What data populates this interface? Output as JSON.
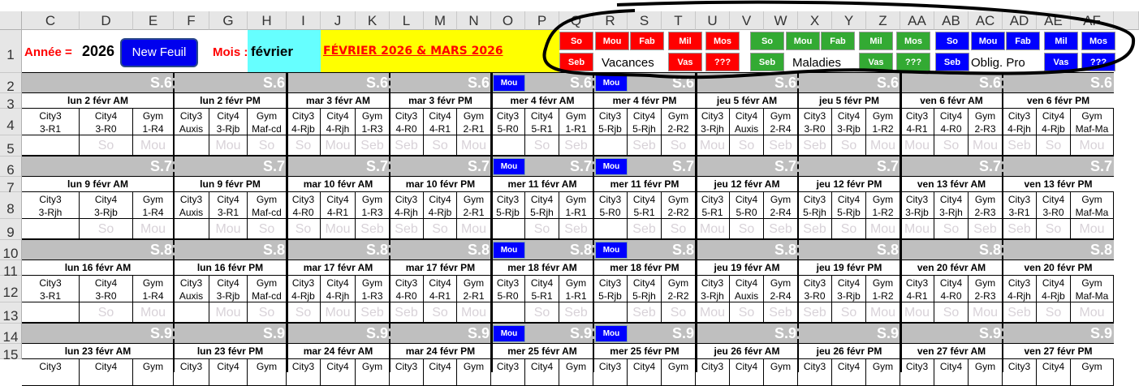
{
  "columns": [
    "C",
    "D",
    "E",
    "F",
    "G",
    "H",
    "I",
    "J",
    "K",
    "L",
    "M",
    "N",
    "O",
    "P",
    "Q",
    "R",
    "S",
    "T",
    "U",
    "V",
    "W",
    "X",
    "Y",
    "Z",
    "AA",
    "AB",
    "AC",
    "AD",
    "AE",
    "AF"
  ],
  "rows": [
    "1",
    "2",
    "3",
    "4",
    "5",
    "6",
    "7",
    "8",
    "9",
    "10",
    "11",
    "12",
    "13",
    "14",
    "15"
  ],
  "header": {
    "annee_label": "Année =",
    "annee_value": "2026",
    "new_sheet_button": "New Feuil",
    "mois_label": "Mois :",
    "mois_value": "février",
    "title": "FÉVRIER 2026 & MARS 2026"
  },
  "colors": {
    "red": "#ff0000",
    "green": "#33aa33",
    "blue": "#0000ff",
    "cyan": "#66ffff",
    "yellow": "#ffff00",
    "week_bar": "#bfbfbf"
  },
  "legend": [
    {
      "label": "Vacances",
      "color": "#ff0000",
      "top": [
        "So",
        "Mou",
        "Fab",
        "Mil",
        "Mos"
      ],
      "bottom": [
        "Seb",
        "Vas",
        "???"
      ]
    },
    {
      "label": "Maladies",
      "color": "#33aa33",
      "top": [
        "So",
        "Mou",
        "Fab",
        "Mil",
        "Mos"
      ],
      "bottom": [
        "Seb",
        "Vas",
        "???"
      ]
    },
    {
      "label": "Oblig. Pro",
      "color": "#0000ff",
      "top": [
        "So",
        "Mou",
        "Fab",
        "Mil",
        "Mos"
      ],
      "bottom": [
        "Seb",
        "Vas",
        "???"
      ]
    }
  ],
  "week_marker": "Mou",
  "weeks": [
    {
      "label": "S.6",
      "blocks": [
        {
          "title": "lun 2 févr AM",
          "slots": [
            [
              "City3",
              "3-R1",
              ""
            ],
            [
              "City4",
              "3-R0",
              "So"
            ],
            [
              "Gym",
              "1-R4",
              "Mou"
            ]
          ]
        },
        {
          "title": "lun 2 févr PM",
          "slots": [
            [
              "City3",
              "Auxis",
              ""
            ],
            [
              "City4",
              "3-Rjb",
              "Mou"
            ],
            [
              "Gym",
              "Maf-cd",
              "So"
            ]
          ]
        },
        {
          "title": "mar 3 févr AM",
          "slots": [
            [
              "City3",
              "4-Rjb",
              "So"
            ],
            [
              "City4",
              "4-Rjh",
              "Mou"
            ],
            [
              "Gym",
              "1-R3",
              "Seb"
            ]
          ]
        },
        {
          "title": "mar 3 févr PM",
          "slots": [
            [
              "City3",
              "4-R0",
              "Seb"
            ],
            [
              "City4",
              "4-R1",
              "So"
            ],
            [
              "Gym",
              "2-R1",
              "Mou"
            ]
          ]
        },
        {
          "title": "mer 4 févr AM",
          "slots": [
            [
              "City3",
              "5-R0",
              ""
            ],
            [
              "City4",
              "5-R1",
              "So"
            ],
            [
              "Gym",
              "1-R1",
              "Seb"
            ]
          ]
        },
        {
          "title": "mer 4 févr PM",
          "slots": [
            [
              "City3",
              "5-Rjb",
              ""
            ],
            [
              "City4",
              "5-Rjh",
              "Seb"
            ],
            [
              "Gym",
              "2-R2",
              "So"
            ]
          ]
        },
        {
          "title": "jeu 5 févr AM",
          "slots": [
            [
              "City3",
              "3-Rjh",
              "Mou"
            ],
            [
              "City4",
              "Auxis",
              "So"
            ],
            [
              "Gym",
              "2-R4",
              "Seb"
            ]
          ]
        },
        {
          "title": "jeu 5 févr PM",
          "slots": [
            [
              "City3",
              "3-R0",
              "Seb"
            ],
            [
              "City4",
              "3-Rjb",
              "So"
            ],
            [
              "Gym",
              "1-R2",
              "Mou"
            ]
          ]
        },
        {
          "title": "ven 6 févr AM",
          "slots": [
            [
              "City3",
              "4-R1",
              "Mou"
            ],
            [
              "City4",
              "4-R0",
              "So"
            ],
            [
              "Gym",
              "2-R3",
              "Mou"
            ]
          ]
        },
        {
          "title": "ven 6 févr PM",
          "slots": [
            [
              "City3",
              "4-Rjh",
              "Seb"
            ],
            [
              "City4",
              "4-Rjb",
              "So"
            ],
            [
              "Gym",
              "Maf-Ma",
              "Mou"
            ]
          ]
        }
      ]
    },
    {
      "label": "S.7",
      "blocks": [
        {
          "title": "lun 9 févr AM",
          "slots": [
            [
              "City3",
              "3-Rjh",
              ""
            ],
            [
              "City4",
              "3-Rjb",
              "So"
            ],
            [
              "Gym",
              "1-R4",
              "Mou"
            ]
          ]
        },
        {
          "title": "lun 9 févr PM",
          "slots": [
            [
              "City3",
              "Auxis",
              ""
            ],
            [
              "City4",
              "3-R1",
              "Mou"
            ],
            [
              "Gym",
              "Maf-cd",
              "So"
            ]
          ]
        },
        {
          "title": "mar 10 févr AM",
          "slots": [
            [
              "City3",
              "4-R0",
              "So"
            ],
            [
              "City4",
              "4-R1",
              "Mou"
            ],
            [
              "Gym",
              "1-R3",
              "Seb"
            ]
          ]
        },
        {
          "title": "mar 10 févr PM",
          "slots": [
            [
              "City3",
              "4-Rjh",
              "Seb"
            ],
            [
              "City4",
              "4-Rjb",
              "So"
            ],
            [
              "Gym",
              "2-R1",
              "Mou"
            ]
          ]
        },
        {
          "title": "mer 11 févr AM",
          "slots": [
            [
              "City3",
              "5-Rjb",
              ""
            ],
            [
              "City4",
              "5-Rjh",
              "So"
            ],
            [
              "Gym",
              "1-R1",
              "Seb"
            ]
          ]
        },
        {
          "title": "mer 11 févr PM",
          "slots": [
            [
              "City3",
              "5-R0",
              ""
            ],
            [
              "City4",
              "5-R1",
              "Seb"
            ],
            [
              "Gym",
              "2-R2",
              "So"
            ]
          ]
        },
        {
          "title": "jeu 12 févr AM",
          "slots": [
            [
              "City3",
              "5-R1",
              "Mou"
            ],
            [
              "City4",
              "5-R0",
              "So"
            ],
            [
              "Gym",
              "2-R4",
              "Seb"
            ]
          ]
        },
        {
          "title": "jeu 12 févr PM",
          "slots": [
            [
              "City3",
              "5-Rjh",
              "Seb"
            ],
            [
              "City4",
              "5-Rjb",
              "So"
            ],
            [
              "Gym",
              "1-R2",
              "Mou"
            ]
          ]
        },
        {
          "title": "ven 13 févr AM",
          "slots": [
            [
              "City3",
              "3-Rjb",
              "Mou"
            ],
            [
              "City4",
              "3-Rjh",
              "So"
            ],
            [
              "Gym",
              "2-R3",
              "Seb"
            ]
          ]
        },
        {
          "title": "ven 13 févr PM",
          "slots": [
            [
              "City3",
              "3-R1",
              "Seb"
            ],
            [
              "City4",
              "3-R0",
              "So"
            ],
            [
              "Gym",
              "Maf-Ma",
              "Mou"
            ]
          ]
        }
      ]
    },
    {
      "label": "S.8",
      "blocks": [
        {
          "title": "lun 16 févr AM",
          "slots": [
            [
              "City3",
              "3-R1",
              ""
            ],
            [
              "City4",
              "3-R0",
              "So"
            ],
            [
              "Gym",
              "1-R4",
              "Mou"
            ]
          ]
        },
        {
          "title": "lun 16 févr PM",
          "slots": [
            [
              "City3",
              "Auxis",
              ""
            ],
            [
              "City4",
              "3-Rjb",
              "Mou"
            ],
            [
              "Gym",
              "Maf-cd",
              "So"
            ]
          ]
        },
        {
          "title": "mar 17 févr AM",
          "slots": [
            [
              "City3",
              "4-Rjb",
              "So"
            ],
            [
              "City4",
              "4-Rjh",
              "Mou"
            ],
            [
              "Gym",
              "1-R3",
              "Seb"
            ]
          ]
        },
        {
          "title": "mar 17 févr PM",
          "slots": [
            [
              "City3",
              "4-R0",
              "Seb"
            ],
            [
              "City4",
              "4-R1",
              "So"
            ],
            [
              "Gym",
              "2-R1",
              "Mou"
            ]
          ]
        },
        {
          "title": "mer 18 févr AM",
          "slots": [
            [
              "City3",
              "5-R0",
              ""
            ],
            [
              "City4",
              "5-R1",
              "So"
            ],
            [
              "Gym",
              "1-R1",
              "Seb"
            ]
          ]
        },
        {
          "title": "mer 18 févr PM",
          "slots": [
            [
              "City3",
              "5-Rjb",
              ""
            ],
            [
              "City4",
              "5-Rjh",
              "Seb"
            ],
            [
              "Gym",
              "2-R2",
              "So"
            ]
          ]
        },
        {
          "title": "jeu 19 févr AM",
          "slots": [
            [
              "City3",
              "3-Rjh",
              "Mou"
            ],
            [
              "City4",
              "Auxis",
              "So"
            ],
            [
              "Gym",
              "2-R4",
              "Seb"
            ]
          ]
        },
        {
          "title": "jeu 19 févr PM",
          "slots": [
            [
              "City3",
              "3-R0",
              "Seb"
            ],
            [
              "City4",
              "3-Rjb",
              "So"
            ],
            [
              "Gym",
              "1-R2",
              "Mou"
            ]
          ]
        },
        {
          "title": "ven 20 févr AM",
          "slots": [
            [
              "City3",
              "4-R1",
              "Mou"
            ],
            [
              "City4",
              "4-R0",
              "So"
            ],
            [
              "Gym",
              "2-R3",
              "Mou"
            ]
          ]
        },
        {
          "title": "ven 20 févr PM",
          "slots": [
            [
              "City3",
              "4-Rjh",
              "Seb"
            ],
            [
              "City4",
              "4-Rjb",
              "So"
            ],
            [
              "Gym",
              "Maf-Ma",
              "Mou"
            ]
          ]
        }
      ]
    },
    {
      "label": "S.9",
      "blocks": [
        {
          "title": "lun 23 févr AM",
          "slots": [
            [
              "City3"
            ],
            [
              "City4"
            ],
            [
              "Gym"
            ]
          ]
        },
        {
          "title": "lun 23 févr PM",
          "slots": [
            [
              "City3"
            ],
            [
              "City4"
            ],
            [
              "Gym"
            ]
          ]
        },
        {
          "title": "mar 24 févr AM",
          "slots": [
            [
              "City3"
            ],
            [
              "City4"
            ],
            [
              "Gym"
            ]
          ]
        },
        {
          "title": "mar 24 févr PM",
          "slots": [
            [
              "City3"
            ],
            [
              "City4"
            ],
            [
              "Gym"
            ]
          ]
        },
        {
          "title": "mer 25 févr AM",
          "slots": [
            [
              "City3"
            ],
            [
              "City4"
            ],
            [
              "Gym"
            ]
          ]
        },
        {
          "title": "mer 25 févr PM",
          "slots": [
            [
              "City3"
            ],
            [
              "City4"
            ],
            [
              "Gym"
            ]
          ]
        },
        {
          "title": "jeu 26 févr AM",
          "slots": [
            [
              "City3"
            ],
            [
              "City4"
            ],
            [
              "Gym"
            ]
          ]
        },
        {
          "title": "jeu 26 févr PM",
          "slots": [
            [
              "City3"
            ],
            [
              "City4"
            ],
            [
              "Gym"
            ]
          ]
        },
        {
          "title": "ven 27 févr AM",
          "slots": [
            [
              "City3"
            ],
            [
              "City4"
            ],
            [
              "Gym"
            ]
          ]
        },
        {
          "title": "ven 27 févr PM",
          "slots": [
            [
              "City3"
            ],
            [
              "City4"
            ],
            [
              "Gym"
            ]
          ]
        }
      ]
    }
  ]
}
